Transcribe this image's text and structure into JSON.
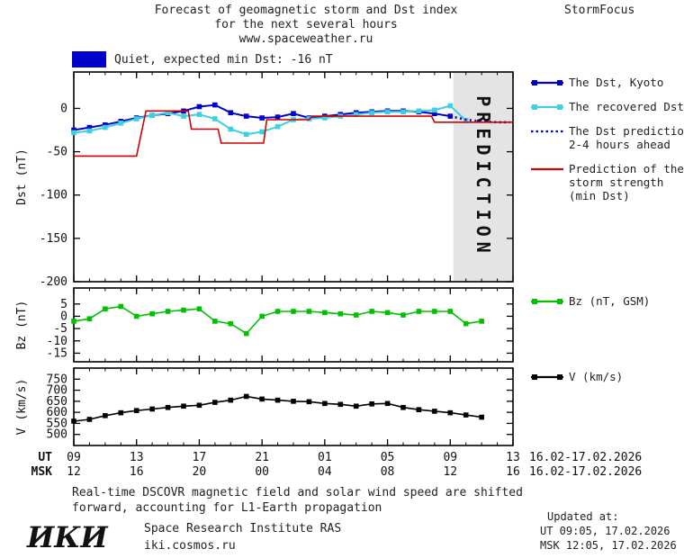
{
  "header": {
    "title_lines": [
      "Forecast of geomagnetic storm and Dst index",
      "for the next several hours",
      "www.spaceweather.ru"
    ],
    "brand": "StormFocus"
  },
  "status_banner": {
    "text": "Quiet, expected min Dst: -16 nT",
    "swatch_color": "#0000cd"
  },
  "prediction_zone": {
    "label": "PREDICTION",
    "start_hour": 24.2,
    "end_hour": 28,
    "fill": "#e4e4e4",
    "text_color": "#bbbbbb"
  },
  "x_axis": {
    "ut_label": "UT",
    "msk_label": "MSK",
    "hour_min": 0,
    "hour_max": 28,
    "tick_hours": [
      0,
      4,
      8,
      12,
      16,
      20,
      24,
      28
    ],
    "ut_ticks": [
      "09",
      "13",
      "17",
      "21",
      "01",
      "05",
      "09",
      "13"
    ],
    "msk_ticks": [
      "12",
      "16",
      "20",
      "00",
      "04",
      "08",
      "12",
      "16"
    ],
    "ut_date_range": "16.02-17.02.2026",
    "msk_date_range": "16.02-17.02.2026"
  },
  "chart_data": [
    {
      "type": "line",
      "name": "dst",
      "ylabel": "Dst (nT)",
      "ylim": [
        -200,
        42
      ],
      "yticks": [
        0,
        -50,
        -100,
        -150,
        -200
      ],
      "x_unit": "hours from 09:00 UT 16.02.2026",
      "series": [
        {
          "name": "The Dst, Kyoto",
          "color": "#0000cd",
          "style": "solid",
          "marker": "square",
          "width": 2,
          "x": [
            0,
            1,
            2,
            3,
            4,
            5,
            6,
            7,
            8,
            9,
            10,
            11,
            12,
            13,
            14,
            15,
            16,
            17,
            18,
            19,
            20,
            21,
            22,
            23,
            24
          ],
          "values": [
            -25,
            -22,
            -19,
            -15,
            -11,
            -8,
            -6,
            -3,
            2,
            4,
            -5,
            -9,
            -11,
            -10,
            -6,
            -11,
            -9,
            -7,
            -5,
            -4,
            -3,
            -3,
            -4,
            -6,
            -9
          ]
        },
        {
          "name": "The recovered Dst",
          "color": "#3ed0e0",
          "style": "solid",
          "marker": "square",
          "width": 2,
          "x": [
            0,
            1,
            2,
            3,
            4,
            5,
            6,
            7,
            8,
            9,
            10,
            11,
            12,
            13,
            14,
            15,
            16,
            17,
            18,
            19,
            20,
            21,
            22,
            23,
            24,
            25
          ],
          "values": [
            -28,
            -26,
            -22,
            -17,
            -12,
            -8,
            -5,
            -9,
            -7,
            -12,
            -24,
            -30,
            -27,
            -21,
            -13,
            -12,
            -11,
            -9,
            -7,
            -5,
            -4,
            -4,
            -3,
            -2,
            3,
            -14
          ]
        },
        {
          "name": "The Dst prediction 2-4 hours ahead",
          "color": "#0000cd",
          "style": "dotted",
          "marker": "none",
          "width": 2.6,
          "x": [
            24,
            25,
            26,
            27,
            27.8
          ],
          "values": [
            -9,
            -13,
            -15,
            -16,
            -16
          ]
        },
        {
          "name": "Prediction of the storm strength (min Dst)",
          "color": "#d00000",
          "style": "solid",
          "marker": "none",
          "width": 1.6,
          "x": [
            0,
            4.0,
            4.6,
            7.3,
            7.5,
            9.2,
            9.4,
            12.1,
            12.3,
            15.0,
            15.2,
            22.8,
            23.0,
            28
          ],
          "values": [
            -55,
            -55,
            -3,
            -3,
            -24,
            -24,
            -40,
            -40,
            -13,
            -13,
            -9,
            -9,
            -16,
            -16
          ]
        }
      ]
    },
    {
      "type": "line",
      "name": "bz",
      "ylabel": "Bz (nT)",
      "ylim": [
        -18.5,
        11.5
      ],
      "yticks": [
        5,
        0,
        -5,
        -10,
        -15
      ],
      "series": [
        {
          "name": "Bz (nT, GSM)",
          "color": "#00c000",
          "style": "solid",
          "marker": "square",
          "width": 1.6,
          "x": [
            0,
            1,
            2,
            3,
            4,
            5,
            6,
            7,
            8,
            9,
            10,
            11,
            12,
            13,
            14,
            15,
            16,
            17,
            18,
            19,
            20,
            21,
            22,
            23,
            24,
            25,
            26
          ],
          "values": [
            -2,
            -1,
            3,
            4,
            0,
            1,
            2,
            2.5,
            3,
            -2,
            -3,
            -7,
            0,
            2,
            2,
            2,
            1.5,
            1,
            0.5,
            2,
            1.5,
            0.5,
            2,
            2,
            2,
            -3,
            -2
          ]
        }
      ]
    },
    {
      "type": "line",
      "name": "v",
      "ylabel": "V (km/s)",
      "ylim": [
        450,
        800
      ],
      "yticks": [
        750,
        700,
        650,
        600,
        550,
        500
      ],
      "series": [
        {
          "name": "V (km/s)",
          "color": "#000000",
          "style": "solid",
          "marker": "square",
          "width": 1.6,
          "x": [
            0,
            1,
            2,
            3,
            4,
            5,
            6,
            7,
            8,
            9,
            10,
            11,
            12,
            13,
            14,
            15,
            16,
            17,
            18,
            19,
            20,
            21,
            22,
            23,
            24,
            25,
            26
          ],
          "values": [
            560,
            568,
            585,
            598,
            608,
            615,
            622,
            628,
            632,
            645,
            655,
            672,
            660,
            655,
            650,
            648,
            640,
            636,
            628,
            638,
            640,
            622,
            612,
            605,
            598,
            588,
            578
          ]
        }
      ]
    }
  ],
  "legends": {
    "dst": [
      {
        "lines": [
          "The Dst, Kyoto"
        ],
        "color": "#0000cd",
        "line_style": "solid",
        "marker": "square"
      },
      {
        "lines": [
          "The recovered Dst"
        ],
        "color": "#3ed0e0",
        "line_style": "solid",
        "marker": "square"
      },
      {
        "lines": [
          "The Dst prediction",
          "2-4 hours ahead"
        ],
        "color": "#0000cd",
        "line_style": "dotted",
        "marker": "none"
      },
      {
        "lines": [
          "Prediction of the",
          "storm strength",
          "(min Dst)"
        ],
        "color": "#d00000",
        "line_style": "solid",
        "marker": "none"
      }
    ],
    "bz": [
      {
        "lines": [
          "Bz (nT, GSM)"
        ],
        "color": "#00c000",
        "line_style": "solid",
        "marker": "square"
      }
    ],
    "v": [
      {
        "lines": [
          "V (km/s)"
        ],
        "color": "#000000",
        "line_style": "solid",
        "marker": "square"
      }
    ]
  },
  "footer": {
    "note_line1": "Real-time DSCOVR magnetic field and solar wind speed are shifted",
    "note_line2": "forward, accounting for L1-Earth propagation",
    "updated_label": "Updated at:",
    "updated_ut": "UT  09:05, 17.02.2026",
    "updated_msk": "MSK 12:05, 17.02.2026",
    "institute_logo": "ИКИ",
    "institute_name": "Space Research Institute RAS",
    "institute_site": "iki.cosmos.ru"
  }
}
